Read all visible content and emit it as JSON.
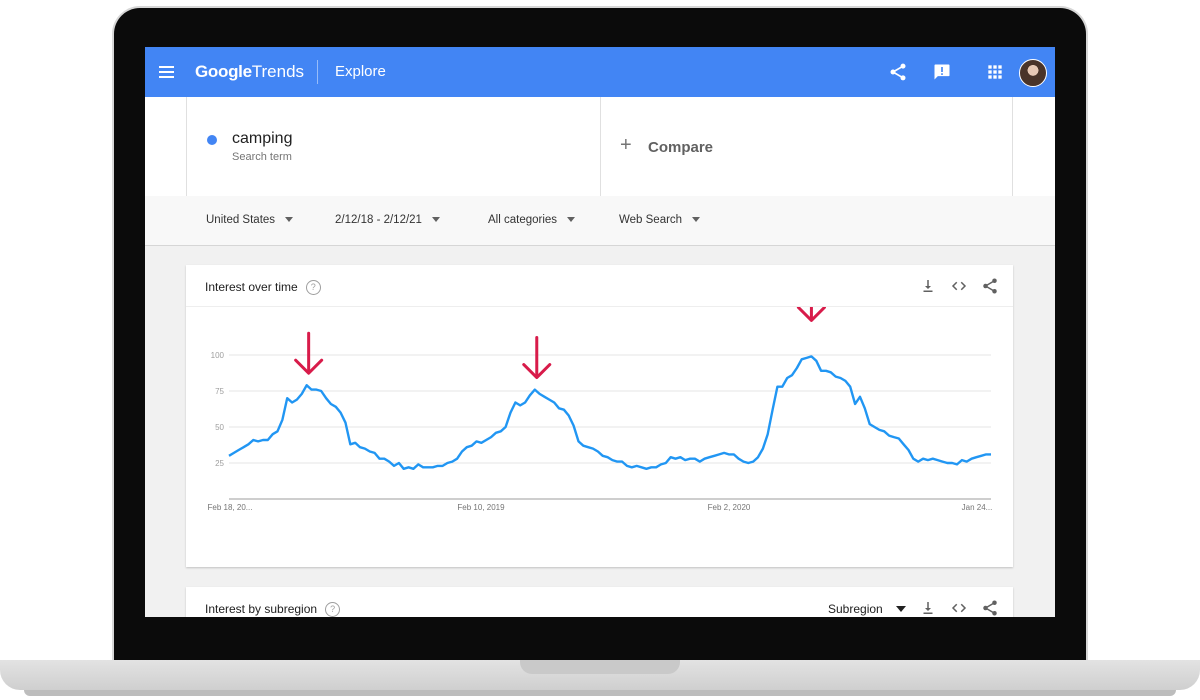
{
  "app": {
    "logo_google": "Google",
    "logo_trends": "Trends",
    "page": "Explore",
    "icons": [
      "menu-icon",
      "share-icon",
      "feedback-icon",
      "apps-icon",
      "avatar"
    ]
  },
  "search": {
    "term": "camping",
    "term_type": "Search term",
    "compare_label": "Compare",
    "term_color": "#4285f4"
  },
  "filters": {
    "region": "United States",
    "date_range": "2/12/18 - 2/12/21",
    "category": "All categories",
    "search_type": "Web Search"
  },
  "interest_over_time": {
    "title": "Interest over time",
    "icons": [
      "download-icon",
      "embed-icon",
      "share-icon"
    ]
  },
  "interest_by_subregion": {
    "title": "Interest by subregion",
    "dropdown": "Subregion",
    "icons": [
      "download-icon",
      "embed-icon",
      "share-icon"
    ]
  },
  "colors": {
    "header": "#4285f4",
    "line": "#2196f3",
    "annotation_arrows": "#d81b4a"
  },
  "chart_data": {
    "type": "line",
    "title": "",
    "xlabel": "",
    "ylabel": "",
    "ylim": [
      0,
      100
    ],
    "yticks": [
      25,
      50,
      75,
      100
    ],
    "xtick_labels": [
      "Feb 18, 20...",
      "Feb 10, 2019",
      "Feb 2, 2020",
      "Jan 24..."
    ],
    "grid": true,
    "series": [
      {
        "name": "camping",
        "values": [
          30,
          32,
          34,
          36,
          38,
          41,
          40,
          41,
          41,
          45,
          47,
          55,
          70,
          67,
          69,
          73,
          79,
          76,
          76,
          75,
          70,
          66,
          64,
          60,
          53,
          38,
          39,
          36,
          35,
          33,
          32,
          28,
          28,
          26,
          23,
          25,
          21,
          22,
          21,
          24,
          22,
          22,
          22,
          23,
          23,
          25,
          26,
          28,
          33,
          36,
          37,
          40,
          39,
          41,
          43,
          46,
          47,
          50,
          60,
          67,
          65,
          67,
          72,
          76,
          73,
          71,
          69,
          67,
          63,
          62,
          58,
          51,
          40,
          37,
          36,
          35,
          33,
          30,
          29,
          27,
          26,
          26,
          23,
          22,
          23,
          22,
          21,
          22,
          22,
          24,
          25,
          29,
          28,
          29,
          27,
          28,
          28,
          26,
          28,
          29,
          30,
          31,
          32,
          31,
          31,
          28,
          26,
          25,
          26,
          29,
          35,
          45,
          62,
          78,
          78,
          84,
          86,
          91,
          97,
          98,
          99,
          96,
          89,
          89,
          88,
          85,
          84,
          82,
          78,
          66,
          71,
          63,
          52,
          50,
          48,
          47,
          44,
          43,
          42,
          38,
          34,
          28,
          26,
          28,
          27,
          28,
          27,
          26,
          25,
          25,
          24,
          27,
          26,
          28,
          29,
          30,
          31,
          31
        ]
      }
    ],
    "annotations": [
      "arrow-peak-2018",
      "arrow-peak-2019",
      "arrow-peak-2020"
    ]
  }
}
